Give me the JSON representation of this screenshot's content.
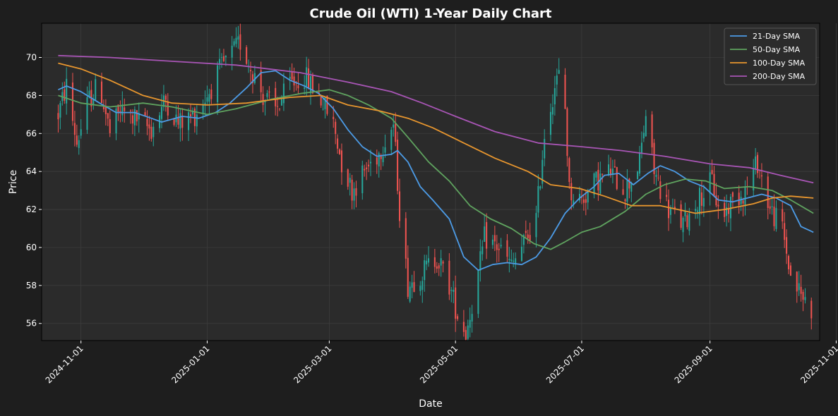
{
  "chart_data": {
    "type": "candlestick",
    "title": "Crude Oil (WTI) 1-Year Daily Chart",
    "xlabel": "Date",
    "ylabel": "Price",
    "xlim": [
      "2024-10-13",
      "2025-10-24"
    ],
    "ylim": [
      55.1,
      71.8
    ],
    "x_ticks": [
      "2024-11-01",
      "2025-01-01",
      "2025-03-01",
      "2025-05-01",
      "2025-07-01",
      "2025-09-01",
      "2025-11-01"
    ],
    "y_ticks": [
      56,
      58,
      60,
      62,
      64,
      66,
      68,
      70
    ],
    "grid": true,
    "legend_position": "top-right",
    "colors": {
      "background": "#1e1e1e",
      "plot_background": "#2b2b2b",
      "up_candle": "#26a69a",
      "down_candle": "#ef5350"
    },
    "close_path": [
      [
        "2024-10-21",
        67.0
      ],
      [
        "2024-10-25",
        68.5
      ],
      [
        "2024-10-30",
        65.5
      ],
      [
        "2024-11-05",
        67.8
      ],
      [
        "2024-11-10",
        68.6
      ],
      [
        "2024-11-15",
        66.0
      ],
      [
        "2024-11-20",
        67.2
      ],
      [
        "2024-11-27",
        66.8
      ],
      [
        "2024-12-05",
        66.2
      ],
      [
        "2024-12-12",
        67.8
      ],
      [
        "2024-12-18",
        66.5
      ],
      [
        "2024-12-26",
        67.0
      ],
      [
        "2025-01-02",
        68.2
      ],
      [
        "2025-01-08",
        69.5
      ],
      [
        "2025-01-13",
        70.2
      ],
      [
        "2025-01-17",
        70.8
      ],
      [
        "2025-01-22",
        69.5
      ],
      [
        "2025-01-28",
        68.0
      ],
      [
        "2025-02-03",
        67.2
      ],
      [
        "2025-02-10",
        68.6
      ],
      [
        "2025-02-17",
        69.0
      ],
      [
        "2025-02-24",
        68.0
      ],
      [
        "2025-03-03",
        66.5
      ],
      [
        "2025-03-07",
        64.5
      ],
      [
        "2025-03-12",
        63.0
      ],
      [
        "2025-03-18",
        64.0
      ],
      [
        "2025-03-25",
        65.0
      ],
      [
        "2025-04-01",
        66.5
      ],
      [
        "2025-04-04",
        62.0
      ],
      [
        "2025-04-08",
        58.0
      ],
      [
        "2025-04-14",
        58.6
      ],
      [
        "2025-04-22",
        59.5
      ],
      [
        "2025-04-28",
        58.0
      ],
      [
        "2025-05-02",
        56.5
      ],
      [
        "2025-05-06",
        55.5
      ],
      [
        "2025-05-12",
        58.5
      ],
      [
        "2025-05-15",
        60.5
      ],
      [
        "2025-05-22",
        60.0
      ],
      [
        "2025-05-28",
        59.0
      ],
      [
        "2025-06-03",
        60.2
      ],
      [
        "2025-06-09",
        61.5
      ],
      [
        "2025-06-13",
        66.0
      ],
      [
        "2025-06-18",
        68.5
      ],
      [
        "2025-06-22",
        69.5
      ],
      [
        "2025-06-25",
        63.0
      ],
      [
        "2025-07-01",
        62.5
      ],
      [
        "2025-07-08",
        63.5
      ],
      [
        "2025-07-15",
        64.0
      ],
      [
        "2025-07-22",
        63.0
      ],
      [
        "2025-07-29",
        64.5
      ],
      [
        "2025-08-01",
        67.0
      ],
      [
        "2025-08-05",
        64.0
      ],
      [
        "2025-08-12",
        62.0
      ],
      [
        "2025-08-19",
        61.2
      ],
      [
        "2025-08-26",
        62.5
      ],
      [
        "2025-09-02",
        63.5
      ],
      [
        "2025-09-06",
        61.5
      ],
      [
        "2025-09-12",
        62.5
      ],
      [
        "2025-09-18",
        63.0
      ],
      [
        "2025-09-24",
        64.5
      ],
      [
        "2025-09-30",
        62.0
      ],
      [
        "2025-10-06",
        61.0
      ],
      [
        "2025-10-10",
        58.5
      ],
      [
        "2025-10-15",
        57.5
      ],
      [
        "2025-10-20",
        56.8
      ]
    ],
    "series": [
      {
        "name": "21-Day SMA",
        "color": "#4c9be6",
        "points": [
          [
            "2024-10-21",
            68.3
          ],
          [
            "2024-10-25",
            68.5
          ],
          [
            "2024-11-01",
            68.2
          ],
          [
            "2024-11-10",
            67.6
          ],
          [
            "2024-11-18",
            67.1
          ],
          [
            "2024-11-27",
            67.1
          ],
          [
            "2024-12-05",
            66.8
          ],
          [
            "2024-12-10",
            66.6
          ],
          [
            "2024-12-20",
            66.9
          ],
          [
            "2024-12-28",
            66.8
          ],
          [
            "2025-01-05",
            67.1
          ],
          [
            "2025-01-12",
            67.6
          ],
          [
            "2025-01-20",
            68.4
          ],
          [
            "2025-01-27",
            69.2
          ],
          [
            "2025-02-03",
            69.3
          ],
          [
            "2025-02-10",
            68.8
          ],
          [
            "2025-02-17",
            68.5
          ],
          [
            "2025-02-24",
            68.1
          ],
          [
            "2025-03-03",
            67.3
          ],
          [
            "2025-03-10",
            66.2
          ],
          [
            "2025-03-17",
            65.3
          ],
          [
            "2025-03-24",
            64.8
          ],
          [
            "2025-03-31",
            64.9
          ],
          [
            "2025-04-03",
            65.1
          ],
          [
            "2025-04-08",
            64.5
          ],
          [
            "2025-04-14",
            63.2
          ],
          [
            "2025-04-20",
            62.5
          ],
          [
            "2025-04-28",
            61.5
          ],
          [
            "2025-05-05",
            59.5
          ],
          [
            "2025-05-12",
            58.8
          ],
          [
            "2025-05-19",
            59.1
          ],
          [
            "2025-05-26",
            59.2
          ],
          [
            "2025-06-02",
            59.1
          ],
          [
            "2025-06-09",
            59.5
          ],
          [
            "2025-06-16",
            60.5
          ],
          [
            "2025-06-23",
            61.8
          ],
          [
            "2025-06-30",
            62.6
          ],
          [
            "2025-07-07",
            63.2
          ],
          [
            "2025-07-12",
            63.8
          ],
          [
            "2025-07-19",
            63.9
          ],
          [
            "2025-07-26",
            63.3
          ],
          [
            "2025-08-02",
            63.9
          ],
          [
            "2025-08-08",
            64.3
          ],
          [
            "2025-08-15",
            64.0
          ],
          [
            "2025-08-22",
            63.5
          ],
          [
            "2025-08-29",
            63.2
          ],
          [
            "2025-09-05",
            62.5
          ],
          [
            "2025-09-12",
            62.4
          ],
          [
            "2025-09-19",
            62.6
          ],
          [
            "2025-09-26",
            62.8
          ],
          [
            "2025-10-03",
            62.6
          ],
          [
            "2025-10-10",
            62.2
          ],
          [
            "2025-10-15",
            61.1
          ],
          [
            "2025-10-21",
            60.8
          ]
        ]
      },
      {
        "name": "50-Day SMA",
        "color": "#5fa35f",
        "points": [
          [
            "2024-10-21",
            68.0
          ],
          [
            "2024-11-01",
            67.6
          ],
          [
            "2024-11-15",
            67.4
          ],
          [
            "2024-12-01",
            67.6
          ],
          [
            "2024-12-15",
            67.4
          ],
          [
            "2025-01-01",
            67.0
          ],
          [
            "2025-01-15",
            67.3
          ],
          [
            "2025-02-01",
            67.8
          ],
          [
            "2025-02-15",
            68.1
          ],
          [
            "2025-03-01",
            68.3
          ],
          [
            "2025-03-10",
            68.0
          ],
          [
            "2025-03-20",
            67.5
          ],
          [
            "2025-03-31",
            66.8
          ],
          [
            "2025-04-08",
            65.8
          ],
          [
            "2025-04-18",
            64.5
          ],
          [
            "2025-04-28",
            63.5
          ],
          [
            "2025-05-08",
            62.2
          ],
          [
            "2025-05-18",
            61.5
          ],
          [
            "2025-05-28",
            61.0
          ],
          [
            "2025-06-08",
            60.2
          ],
          [
            "2025-06-16",
            59.9
          ],
          [
            "2025-06-23",
            60.3
          ],
          [
            "2025-07-01",
            60.8
          ],
          [
            "2025-07-10",
            61.1
          ],
          [
            "2025-07-22",
            61.9
          ],
          [
            "2025-08-01",
            62.8
          ],
          [
            "2025-08-10",
            63.3
          ],
          [
            "2025-08-20",
            63.6
          ],
          [
            "2025-08-30",
            63.5
          ],
          [
            "2025-09-08",
            63.1
          ],
          [
            "2025-09-20",
            63.2
          ],
          [
            "2025-10-01",
            63.0
          ],
          [
            "2025-10-10",
            62.5
          ],
          [
            "2025-10-21",
            61.8
          ]
        ]
      },
      {
        "name": "100-Day SMA",
        "color": "#e8962e",
        "points": [
          [
            "2024-10-21",
            69.7
          ],
          [
            "2024-11-01",
            69.4
          ],
          [
            "2024-11-15",
            68.8
          ],
          [
            "2024-12-01",
            68.0
          ],
          [
            "2024-12-15",
            67.6
          ],
          [
            "2025-01-01",
            67.5
          ],
          [
            "2025-01-20",
            67.6
          ],
          [
            "2025-02-10",
            67.9
          ],
          [
            "2025-02-25",
            68.0
          ],
          [
            "2025-03-10",
            67.5
          ],
          [
            "2025-03-25",
            67.2
          ],
          [
            "2025-04-08",
            66.8
          ],
          [
            "2025-04-20",
            66.3
          ],
          [
            "2025-05-05",
            65.5
          ],
          [
            "2025-05-20",
            64.7
          ],
          [
            "2025-06-05",
            64.0
          ],
          [
            "2025-06-16",
            63.3
          ],
          [
            "2025-06-30",
            63.1
          ],
          [
            "2025-07-12",
            62.7
          ],
          [
            "2025-07-25",
            62.2
          ],
          [
            "2025-08-08",
            62.2
          ],
          [
            "2025-08-25",
            61.8
          ],
          [
            "2025-09-08",
            62.0
          ],
          [
            "2025-09-22",
            62.3
          ],
          [
            "2025-10-01",
            62.6
          ],
          [
            "2025-10-10",
            62.7
          ],
          [
            "2025-10-21",
            62.6
          ]
        ]
      },
      {
        "name": "200-Day SMA",
        "color": "#a855b5",
        "points": [
          [
            "2024-10-21",
            70.1
          ],
          [
            "2024-11-15",
            70.0
          ],
          [
            "2024-12-15",
            69.8
          ],
          [
            "2025-01-15",
            69.6
          ],
          [
            "2025-02-15",
            69.2
          ],
          [
            "2025-03-10",
            68.7
          ],
          [
            "2025-03-31",
            68.2
          ],
          [
            "2025-04-15",
            67.6
          ],
          [
            "2025-05-01",
            66.9
          ],
          [
            "2025-05-20",
            66.1
          ],
          [
            "2025-06-10",
            65.5
          ],
          [
            "2025-07-01",
            65.3
          ],
          [
            "2025-07-20",
            65.1
          ],
          [
            "2025-08-10",
            64.8
          ],
          [
            "2025-09-01",
            64.4
          ],
          [
            "2025-09-20",
            64.2
          ],
          [
            "2025-10-05",
            63.8
          ],
          [
            "2025-10-21",
            63.4
          ]
        ]
      }
    ]
  }
}
